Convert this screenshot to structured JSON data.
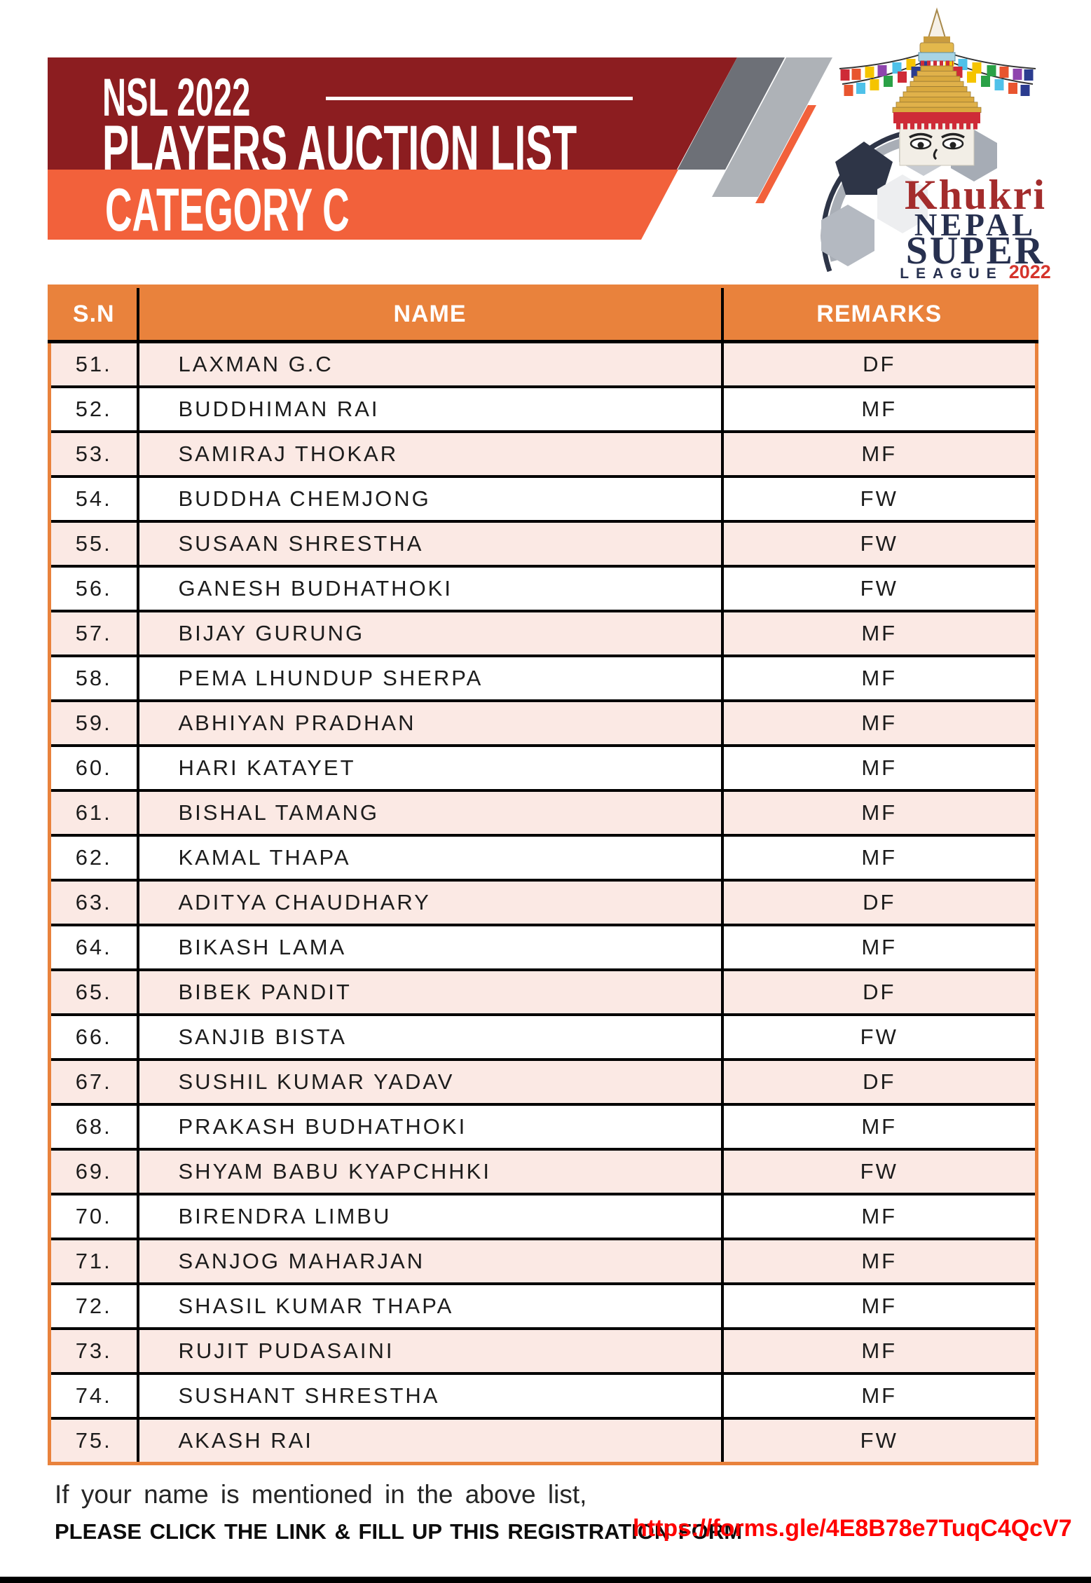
{
  "header": {
    "title_line1": "NSL 2022",
    "title_line2": "PLAYERS AUCTION LIST",
    "category": "CATEGORY C"
  },
  "logo": {
    "brand": "Khukri",
    "name_line1": "NEPAL",
    "name_line2": "SUPER",
    "name_line3": "LEAGUE",
    "year": "2022"
  },
  "table": {
    "columns": [
      "S.N",
      "NAME",
      "REMARKS"
    ],
    "rows": [
      {
        "sn": "51.",
        "name": "LAXMAN G.C",
        "remark": "DF"
      },
      {
        "sn": "52.",
        "name": "BUDDHIMAN RAI",
        "remark": "MF"
      },
      {
        "sn": "53.",
        "name": "SAMIRAJ THOKAR",
        "remark": "MF"
      },
      {
        "sn": "54.",
        "name": "BUDDHA CHEMJONG",
        "remark": "FW"
      },
      {
        "sn": "55.",
        "name": "SUSAAN SHRESTHA",
        "remark": "FW"
      },
      {
        "sn": "56.",
        "name": "GANESH BUDHATHOKI",
        "remark": "FW"
      },
      {
        "sn": "57.",
        "name": "BIJAY GURUNG",
        "remark": "MF"
      },
      {
        "sn": "58.",
        "name": "PEMA LHUNDUP SHERPA",
        "remark": "MF"
      },
      {
        "sn": "59.",
        "name": "ABHIYAN PRADHAN",
        "remark": "MF"
      },
      {
        "sn": "60.",
        "name": "HARI KATAYET",
        "remark": "MF"
      },
      {
        "sn": "61.",
        "name": "BISHAL TAMANG",
        "remark": "MF"
      },
      {
        "sn": "62.",
        "name": "KAMAL THAPA",
        "remark": "MF"
      },
      {
        "sn": "63.",
        "name": "ADITYA CHAUDHARY",
        "remark": "DF"
      },
      {
        "sn": "64.",
        "name": "BIKASH LAMA",
        "remark": "MF"
      },
      {
        "sn": "65.",
        "name": "BIBEK PANDIT",
        "remark": "DF"
      },
      {
        "sn": "66.",
        "name": "SANJIB BISTA",
        "remark": "FW"
      },
      {
        "sn": "67.",
        "name": "SUSHIL KUMAR YADAV",
        "remark": "DF"
      },
      {
        "sn": "68.",
        "name": "PRAKASH BUDHATHOKI",
        "remark": "MF"
      },
      {
        "sn": "69.",
        "name": "SHYAM BABU KYAPCHHKI",
        "remark": "FW"
      },
      {
        "sn": "70.",
        "name": "BIRENDRA LIMBU",
        "remark": "MF"
      },
      {
        "sn": "71.",
        "name": "SANJOG MAHARJAN",
        "remark": "MF"
      },
      {
        "sn": "72.",
        "name": "SHASIL KUMAR THAPA",
        "remark": "MF"
      },
      {
        "sn": "73.",
        "name": "RUJIT PUDASAINI",
        "remark": "MF"
      },
      {
        "sn": "74.",
        "name": "SUSHANT SHRESTHA",
        "remark": "MF"
      },
      {
        "sn": "75.",
        "name": "AKASH RAI",
        "remark": "FW"
      }
    ]
  },
  "footer": {
    "line1": "If your name is mentioned in the above list,",
    "line2": "PLEASE CLICK THE LINK & FILL UP THIS REGISTRATION FORM",
    "link": "https://forms.gle/4E8B78e7TuqC4QcV7"
  },
  "colors": {
    "maroon": "#8C1D20",
    "band_orange": "#F2613B",
    "table_orange": "#E9823C",
    "row_pink": "#FBE9E4",
    "stripe_dark": "#6D7077",
    "stripe_light": "#AEB2B7",
    "link_red": "#FF0000"
  }
}
